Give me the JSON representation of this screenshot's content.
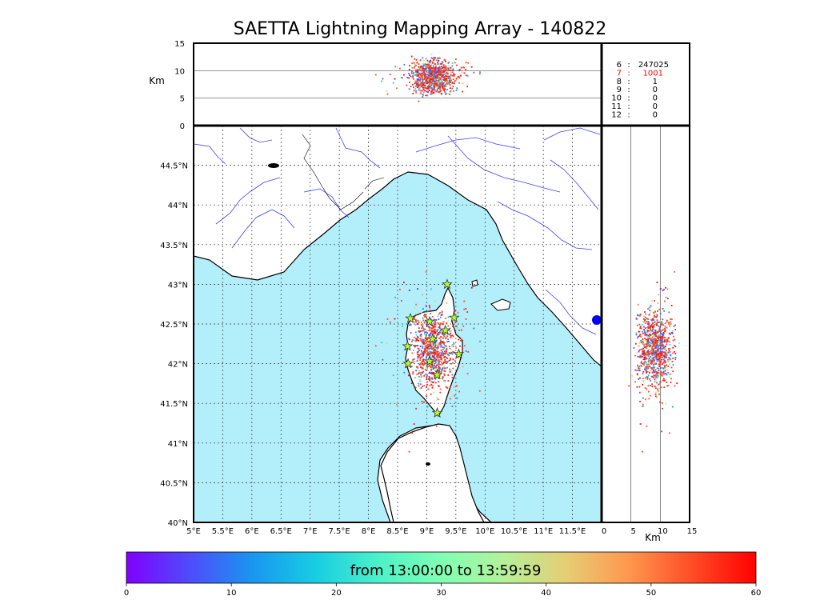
{
  "chart_data": {
    "type": "scatter",
    "title": "SAETTA Lightning Mapping Array - 140822",
    "map": {
      "xlim": [
        5,
        12
      ],
      "ylim": [
        40,
        45
      ],
      "x_ticks": [
        "5°E",
        "5.5°E",
        "6°E",
        "6.5°E",
        "7°E",
        "7.5°E",
        "8°E",
        "8.5°E",
        "9°E",
        "9.5°E",
        "10°E",
        "10.5°E",
        "11°E",
        "11.5°E"
      ],
      "y_ticks": [
        "40°N",
        "40.5°N",
        "41°N",
        "41.5°N",
        "42°N",
        "42.5°N",
        "43°N",
        "43.5°N",
        "44°N",
        "44.5°N"
      ],
      "grid": true,
      "sea_color": "#b3eefb",
      "stations": [
        {
          "lon": 9.35,
          "lat": 43.0
        },
        {
          "lon": 8.72,
          "lat": 42.57
        },
        {
          "lon": 9.05,
          "lat": 42.53
        },
        {
          "lon": 9.47,
          "lat": 42.58
        },
        {
          "lon": 9.32,
          "lat": 42.42
        },
        {
          "lon": 9.1,
          "lat": 42.31
        },
        {
          "lon": 8.67,
          "lat": 42.22
        },
        {
          "lon": 9.55,
          "lat": 42.12
        },
        {
          "lon": 9.05,
          "lat": 42.03
        },
        {
          "lon": 8.68,
          "lat": 42.0
        },
        {
          "lon": 9.18,
          "lat": 41.86
        },
        {
          "lon": 9.18,
          "lat": 41.38
        }
      ],
      "flash_center": {
        "lon": 9.1,
        "lat": 42.2
      }
    },
    "altitude_top": {
      "xlabel_unit": "Km",
      "ylim": [
        0,
        15
      ],
      "y_ticks": [
        "0",
        "5",
        "10",
        "15"
      ]
    },
    "altitude_side": {
      "xlabel_unit": "Km",
      "xlim": [
        0,
        15
      ],
      "x_ticks": [
        "0",
        "5",
        "10",
        "15"
      ]
    },
    "station_counts": [
      {
        "stations": "6",
        "count": "247025",
        "color": "#000000"
      },
      {
        "stations": "7",
        "count": "1001",
        "color": "#ff0000"
      },
      {
        "stations": "8",
        "count": "1",
        "color": "#000000"
      },
      {
        "stations": "9",
        "count": "0",
        "color": "#000000"
      },
      {
        "stations": "10",
        "count": "0",
        "color": "#000000"
      },
      {
        "stations": "11",
        "count": "0",
        "color": "#000000"
      },
      {
        "stations": "12",
        "count": "0",
        "color": "#000000"
      }
    ],
    "colorbar": {
      "label": "from 13:00:00 to 13:59:59",
      "range": [
        0,
        60
      ],
      "ticks": [
        "0",
        "10",
        "20",
        "30",
        "40",
        "50",
        "60"
      ],
      "colormap": [
        "#8000ff",
        "#4f4bfc",
        "#1996f0",
        "#18cde3",
        "#4cf1c9",
        "#80ffb4",
        "#b4f19a",
        "#e6cd73",
        "#ff964e",
        "#ff4b26",
        "#ff0000"
      ]
    }
  }
}
